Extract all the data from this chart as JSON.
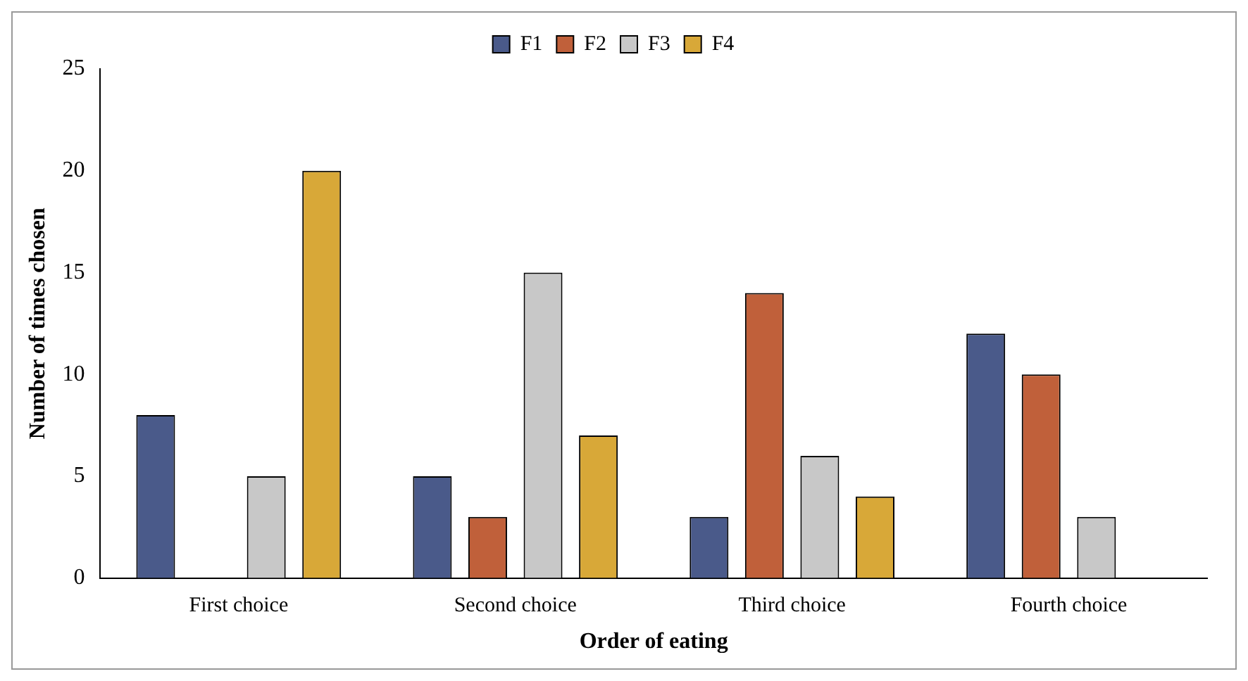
{
  "chart_data": {
    "type": "bar",
    "xlabel": "Order of eating",
    "ylabel": "Number of times chosen",
    "categories": [
      "First choice",
      "Second choice",
      "Third choice",
      "Fourth choice"
    ],
    "series": [
      {
        "name": "F1",
        "color": "#4a5a8a",
        "values": [
          8,
          5,
          3,
          12
        ]
      },
      {
        "name": "F2",
        "color": "#c0603a",
        "values": [
          0,
          3,
          14,
          10
        ]
      },
      {
        "name": "F3",
        "color": "#c8c8c8",
        "values": [
          5,
          15,
          6,
          3
        ]
      },
      {
        "name": "F4",
        "color": "#d8a838",
        "values": [
          20,
          7,
          4,
          0
        ]
      }
    ],
    "ylim": [
      0,
      25
    ],
    "yticks": [
      0,
      5,
      10,
      15,
      20,
      25
    ],
    "grid": false,
    "legend": "top"
  }
}
